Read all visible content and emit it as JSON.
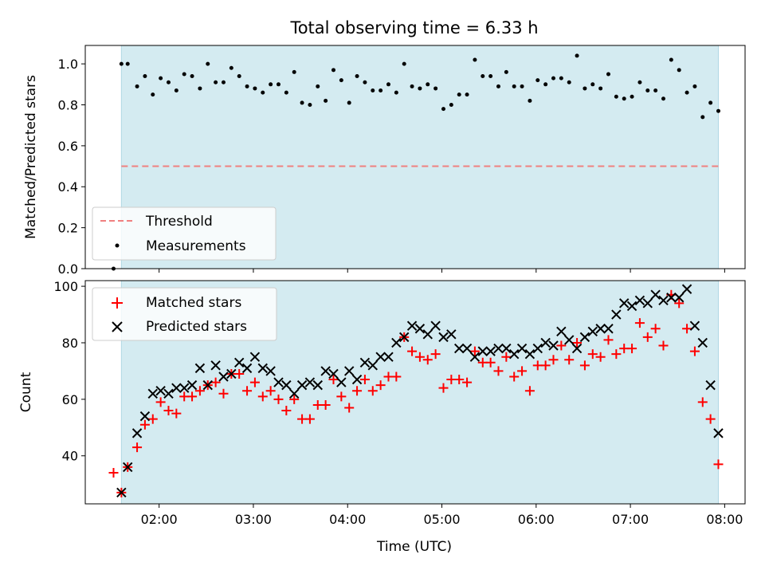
{
  "figure": {
    "title": "Total observing time = 6.33 h",
    "xlabel": "Time (UTC)"
  },
  "colors": {
    "shade": "#d4ebf1",
    "threshold": "#f08080",
    "measurement": "#000000",
    "matched": "#ff0000",
    "predicted": "#000000"
  },
  "chart_data": [
    {
      "type": "scatter",
      "ylabel": "Matched/Predicted stars",
      "xlim": [
        "01:13",
        "08:13"
      ],
      "ylim": [
        0,
        1.09
      ],
      "yticks": [
        0.0,
        0.2,
        0.4,
        0.6,
        0.8,
        1.0
      ],
      "ytick_labels": [
        "0.0",
        "0.2",
        "0.4",
        "0.6",
        "0.8",
        "1.0"
      ],
      "grid": false,
      "legend_position": "lower-left",
      "shaded_interval": [
        "01:36",
        "07:56"
      ],
      "threshold": {
        "name": "Threshold",
        "y": 0.5,
        "x_range": [
          "01:36",
          "07:56"
        ],
        "style": "dashed"
      },
      "series": [
        {
          "name": "Measurements",
          "x": [
            "01:31",
            "01:36",
            "01:40",
            "01:46",
            "01:51",
            "01:56",
            "02:01",
            "02:06",
            "02:11",
            "02:16",
            "02:21",
            "02:26",
            "02:31",
            "02:36",
            "02:41",
            "02:46",
            "02:51",
            "02:56",
            "03:01",
            "03:06",
            "03:11",
            "03:16",
            "03:21",
            "03:26",
            "03:31",
            "03:36",
            "03:41",
            "03:46",
            "03:51",
            "03:56",
            "04:01",
            "04:06",
            "04:11",
            "04:16",
            "04:21",
            "04:26",
            "04:31",
            "04:36",
            "04:41",
            "04:46",
            "04:51",
            "04:56",
            "05:01",
            "05:06",
            "05:11",
            "05:16",
            "05:21",
            "05:26",
            "05:31",
            "05:36",
            "05:41",
            "05:46",
            "05:51",
            "05:56",
            "06:01",
            "06:06",
            "06:11",
            "06:16",
            "06:21",
            "06:26",
            "06:31",
            "06:36",
            "06:41",
            "06:46",
            "06:51",
            "06:56",
            "07:01",
            "07:06",
            "07:11",
            "07:16",
            "07:21",
            "07:26",
            "07:31",
            "07:36",
            "07:41",
            "07:46",
            "07:51",
            "07:56"
          ],
          "y": [
            0.0,
            1.0,
            1.0,
            0.89,
            0.94,
            0.85,
            0.93,
            0.91,
            0.87,
            0.95,
            0.94,
            0.88,
            1.0,
            0.91,
            0.91,
            0.98,
            0.94,
            0.89,
            0.88,
            0.86,
            0.9,
            0.9,
            0.86,
            0.96,
            0.81,
            0.8,
            0.89,
            0.82,
            0.97,
            0.92,
            0.81,
            0.94,
            0.91,
            0.87,
            0.87,
            0.9,
            0.86,
            1.0,
            0.89,
            0.88,
            0.9,
            0.88,
            0.78,
            0.8,
            0.85,
            0.85,
            1.02,
            0.94,
            0.94,
            0.89,
            0.96,
            0.89,
            0.89,
            0.82,
            0.92,
            0.9,
            0.93,
            0.93,
            0.91,
            1.04,
            0.88,
            0.9,
            0.88,
            0.95,
            0.84,
            0.83,
            0.84,
            0.91,
            0.87,
            0.87,
            0.83,
            1.02,
            0.97,
            0.86,
            0.89,
            0.74,
            0.81,
            0.77
          ]
        }
      ]
    },
    {
      "type": "scatter",
      "ylabel": "Count",
      "xlim": [
        "01:13",
        "08:13"
      ],
      "ylim": [
        23,
        102
      ],
      "yticks": [
        40,
        60,
        80,
        100
      ],
      "ytick_labels": [
        "40",
        "60",
        "80",
        "100"
      ],
      "xticks": [
        "02:00",
        "03:00",
        "04:00",
        "05:00",
        "06:00",
        "07:00",
        "08:00"
      ],
      "xtick_labels": [
        "02:00",
        "03:00",
        "04:00",
        "05:00",
        "06:00",
        "07:00",
        "08:00"
      ],
      "grid": false,
      "legend_position": "upper-left",
      "shaded_interval": [
        "01:36",
        "07:56"
      ],
      "x": [
        "01:31",
        "01:36",
        "01:40",
        "01:46",
        "01:51",
        "01:56",
        "02:01",
        "02:06",
        "02:11",
        "02:16",
        "02:21",
        "02:26",
        "02:31",
        "02:36",
        "02:41",
        "02:46",
        "02:51",
        "02:56",
        "03:01",
        "03:06",
        "03:11",
        "03:16",
        "03:21",
        "03:26",
        "03:31",
        "03:36",
        "03:41",
        "03:46",
        "03:51",
        "03:56",
        "04:01",
        "04:06",
        "04:11",
        "04:16",
        "04:21",
        "04:26",
        "04:31",
        "04:36",
        "04:41",
        "04:46",
        "04:51",
        "04:56",
        "05:01",
        "05:06",
        "05:11",
        "05:16",
        "05:21",
        "05:26",
        "05:31",
        "05:36",
        "05:41",
        "05:46",
        "05:51",
        "05:56",
        "06:01",
        "06:06",
        "06:11",
        "06:16",
        "06:21",
        "06:26",
        "06:31",
        "06:36",
        "06:41",
        "06:46",
        "06:51",
        "06:56",
        "07:01",
        "07:06",
        "07:11",
        "07:16",
        "07:21",
        "07:26",
        "07:31",
        "07:36",
        "07:41",
        "07:46",
        "07:51",
        "07:56"
      ],
      "series": [
        {
          "name": "Matched stars",
          "marker": "plus",
          "values": [
            34,
            27,
            36,
            43,
            51,
            53,
            59,
            56,
            55,
            61,
            61,
            63,
            65,
            66,
            62,
            69,
            69,
            63,
            66,
            61,
            63,
            60,
            56,
            60,
            53,
            53,
            58,
            58,
            67,
            61,
            57,
            63,
            67,
            63,
            65,
            68,
            68,
            82,
            77,
            75,
            74,
            76,
            64,
            67,
            67,
            66,
            77,
            73,
            73,
            70,
            75,
            68,
            70,
            63,
            72,
            72,
            74,
            79,
            74,
            80,
            72,
            76,
            75,
            81,
            76,
            78,
            78,
            87,
            82,
            85,
            79,
            97,
            94,
            85,
            77,
            59,
            53,
            37
          ]
        },
        {
          "name": "Predicted stars",
          "marker": "x",
          "values": [
            null,
            27,
            36,
            48,
            54,
            62,
            63,
            62,
            64,
            64,
            65,
            71,
            65,
            72,
            68,
            69,
            73,
            71,
            75,
            71,
            70,
            66,
            65,
            62,
            65,
            66,
            65,
            70,
            69,
            66,
            70,
            67,
            73,
            72,
            75,
            75,
            80,
            82,
            86,
            85,
            83,
            86,
            82,
            83,
            78,
            78,
            75,
            77,
            77,
            78,
            78,
            76,
            78,
            76,
            78,
            80,
            79,
            84,
            81,
            78,
            82,
            84,
            85,
            85,
            90,
            94,
            93,
            95,
            94,
            97,
            95,
            96,
            96,
            99,
            86,
            80,
            65,
            48
          ]
        }
      ]
    }
  ]
}
